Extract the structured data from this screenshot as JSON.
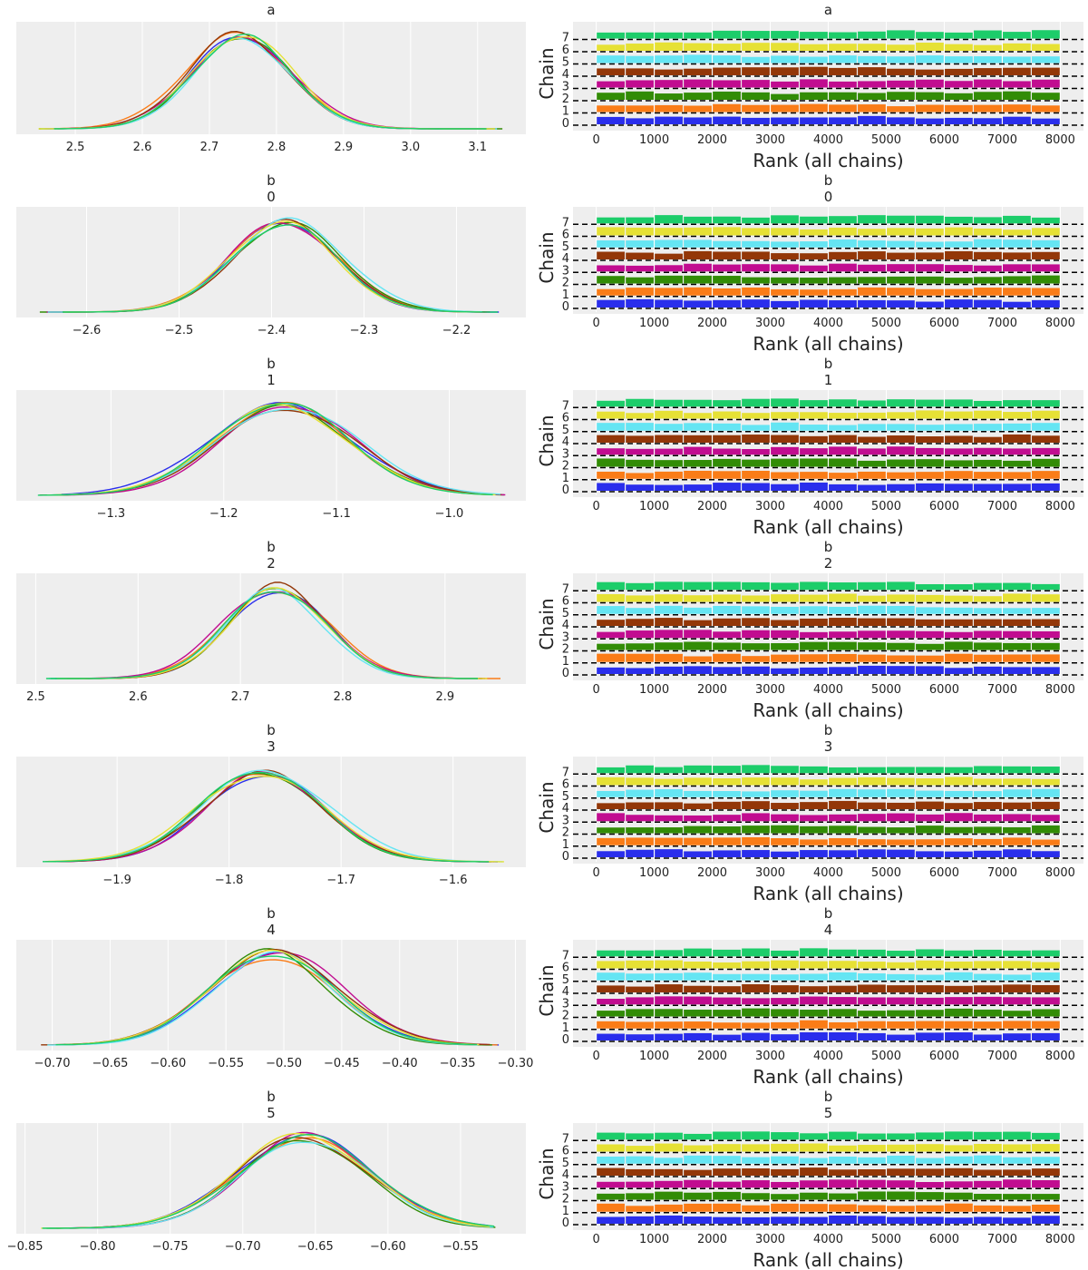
{
  "chart_data": {
    "type": "rank_trace_grid",
    "chains": [
      "0",
      "1",
      "2",
      "3",
      "4",
      "5",
      "6",
      "7"
    ],
    "chain_colors": [
      "#2a2eec",
      "#fa7c17",
      "#328c06",
      "#c10c90",
      "#933708",
      "#65e5f3",
      "#e6e135",
      "#1ccd6a"
    ],
    "rank_xlabel": "Rank (all chains)",
    "rank_ylabel": "Chain",
    "rank_xticks": [
      0,
      1000,
      2000,
      3000,
      4000,
      5000,
      6000,
      7000,
      8000
    ],
    "rank_xlim": [
      -400,
      8400
    ],
    "rank_chain_ticks": [
      "0",
      "1",
      "2",
      "3",
      "4",
      "5",
      "6",
      "7"
    ],
    "grid": true,
    "background": "#eeeeee",
    "rows": [
      {
        "title_lines": [
          "a"
        ],
        "kde": {
          "mean": 2.745,
          "sd": 0.075,
          "xlim": [
            2.412,
            3.172
          ],
          "min": 2.437,
          "max": 3.147,
          "xticks": [
            2.5,
            2.6,
            2.7,
            2.8,
            2.9,
            3.0,
            3.1
          ],
          "xtick_labels": [
            "2.5",
            "2.6",
            "2.7",
            "2.8",
            "2.9",
            "3.0",
            "3.1"
          ]
        }
      },
      {
        "title_lines": [
          "b",
          "0"
        ],
        "kde": {
          "mean": -2.385,
          "sd": 0.058,
          "xlim": [
            -2.676,
            -2.125
          ],
          "min": -2.655,
          "max": -2.147,
          "xticks": [
            -2.6,
            -2.5,
            -2.4,
            -2.3,
            -2.2
          ],
          "xtick_labels": [
            "−2.6",
            "−2.5",
            "−2.4",
            "−2.3",
            "−2.2"
          ]
        }
      },
      {
        "title_lines": [
          "b",
          "1"
        ],
        "kde": {
          "mean": -1.145,
          "sd": 0.062,
          "xlim": [
            -1.384,
            -0.932
          ],
          "min": -1.367,
          "max": -0.949,
          "xticks": [
            -1.3,
            -1.2,
            -1.1,
            -1.0
          ],
          "xtick_labels": [
            "−1.3",
            "−1.2",
            "−1.1",
            "−1.0"
          ]
        }
      },
      {
        "title_lines": [
          "b",
          "2"
        ],
        "kde": {
          "mean": 2.735,
          "sd": 0.05,
          "xlim": [
            2.481,
            2.979
          ],
          "min": 2.503,
          "max": 2.957,
          "xticks": [
            2.5,
            2.6,
            2.7,
            2.8,
            2.9
          ],
          "xtick_labels": [
            "2.5",
            "2.6",
            "2.7",
            "2.8",
            "2.9"
          ]
        }
      },
      {
        "title_lines": [
          "b",
          "3"
        ],
        "kde": {
          "mean": -1.768,
          "sd": 0.055,
          "xlim": [
            -1.99,
            -1.535
          ],
          "min": -1.968,
          "max": -1.553,
          "xticks": [
            -1.9,
            -1.8,
            -1.7,
            -1.6
          ],
          "xtick_labels": [
            "−1.9",
            "−1.8",
            "−1.7",
            "−1.6"
          ]
        }
      },
      {
        "title_lines": [
          "b",
          "4"
        ],
        "kde": {
          "mean": -0.51,
          "sd": 0.055,
          "xlim": [
            -0.731,
            -0.291
          ],
          "min": -0.711,
          "max": -0.31,
          "xticks": [
            -0.7,
            -0.65,
            -0.6,
            -0.55,
            -0.5,
            -0.45,
            -0.4,
            -0.35,
            -0.3
          ],
          "xtick_labels": [
            "−0.70",
            "−0.65",
            "−0.60",
            "−0.55",
            "−0.50",
            "−0.45",
            "−0.40",
            "−0.35",
            "−0.30"
          ]
        }
      },
      {
        "title_lines": [
          "b",
          "5"
        ],
        "kde": {
          "mean": -0.658,
          "sd": 0.045,
          "xlim": [
            -0.856,
            -0.505
          ],
          "min": -0.84,
          "max": -0.52,
          "xticks": [
            -0.85,
            -0.8,
            -0.75,
            -0.7,
            -0.65,
            -0.6,
            -0.55
          ],
          "xtick_labels": [
            "−0.85",
            "−0.80",
            "−0.75",
            "−0.70",
            "−0.65",
            "−0.60",
            "−0.55"
          ]
        }
      }
    ]
  }
}
